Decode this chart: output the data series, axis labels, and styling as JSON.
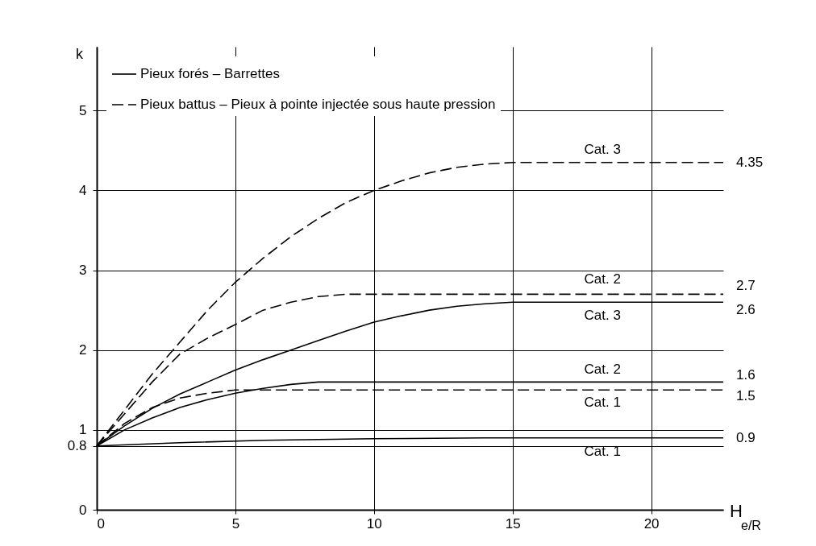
{
  "chart_data": {
    "type": "line",
    "xlabel": "H$_{e/R}$",
    "ylabel": "k",
    "xlim": [
      0,
      22.6
    ],
    "ylim": [
      0,
      5.8
    ],
    "xticks": [
      0,
      5,
      10,
      15,
      20
    ],
    "yticks": [
      0,
      0.8,
      1,
      2,
      3,
      4,
      5
    ],
    "grid": true,
    "series": [
      {
        "name": "Cat. 3",
        "color": "#000000",
        "line_style": "dashed",
        "x": [
          0,
          1,
          2,
          3,
          4,
          5,
          6,
          7,
          8,
          9,
          10,
          11,
          12,
          13,
          14,
          15,
          22.6
        ],
        "values": [
          0.8,
          1.25,
          1.7,
          2.1,
          2.5,
          2.85,
          3.15,
          3.42,
          3.65,
          3.85,
          4.0,
          4.12,
          4.22,
          4.29,
          4.33,
          4.35,
          4.35
        ],
        "value_labels": [
          null,
          null,
          null,
          null,
          null,
          null,
          null,
          null,
          null,
          null,
          null,
          null,
          null,
          null,
          null,
          null,
          "4.35"
        ]
      },
      {
        "name": "Cat. 2",
        "color": "#000000",
        "line_style": "dashed",
        "x": [
          0,
          1,
          2,
          3,
          4,
          5,
          6,
          7,
          8,
          9,
          10,
          22.6
        ],
        "values": [
          0.8,
          1.2,
          1.6,
          1.95,
          2.15,
          2.32,
          2.5,
          2.6,
          2.67,
          2.7,
          2.7,
          2.7
        ],
        "value_labels": [
          null,
          null,
          null,
          null,
          null,
          null,
          null,
          null,
          null,
          null,
          null,
          "2.7"
        ]
      },
      {
        "name": "Cat. 3",
        "color": "#000000",
        "line_style": "solid",
        "x": [
          0,
          1,
          2,
          3,
          4,
          5,
          6,
          7,
          8,
          9,
          10,
          11,
          12,
          13,
          14,
          15,
          22.6
        ],
        "values": [
          0.8,
          1.05,
          1.27,
          1.45,
          1.6,
          1.75,
          1.88,
          2.0,
          2.12,
          2.24,
          2.35,
          2.43,
          2.5,
          2.55,
          2.58,
          2.6,
          2.6
        ],
        "value_labels": [
          null,
          null,
          null,
          null,
          null,
          null,
          null,
          null,
          null,
          null,
          null,
          null,
          null,
          null,
          null,
          null,
          "2.6"
        ]
      },
      {
        "name": "Cat. 2",
        "color": "#000000",
        "line_style": "solid",
        "x": [
          0,
          1,
          2,
          3,
          4,
          5,
          6,
          7,
          8,
          22.6
        ],
        "values": [
          0.8,
          1.0,
          1.15,
          1.28,
          1.38,
          1.46,
          1.52,
          1.57,
          1.6,
          1.6
        ],
        "value_labels": [
          null,
          null,
          null,
          null,
          null,
          null,
          null,
          null,
          null,
          "1.6"
        ]
      },
      {
        "name": "Cat. 1",
        "color": "#000000",
        "line_style": "dashed",
        "x": [
          0,
          1,
          2,
          3,
          4,
          5,
          22.6
        ],
        "values": [
          0.8,
          1.08,
          1.28,
          1.4,
          1.46,
          1.5,
          1.5
        ],
        "value_labels": [
          null,
          null,
          null,
          null,
          null,
          null,
          "1.5"
        ]
      },
      {
        "name": "Cat. 1",
        "color": "#000000",
        "line_style": "solid",
        "x": [
          0,
          3,
          6,
          10,
          14,
          22.6
        ],
        "values": [
          0.8,
          0.84,
          0.87,
          0.89,
          0.9,
          0.9
        ],
        "value_labels": [
          null,
          null,
          null,
          null,
          null,
          "0.9"
        ]
      }
    ],
    "annotations": [
      "Pieux forés – Barrettes",
      "Pieux battus – Pieux à pointe injectée sous haute pression"
    ]
  }
}
